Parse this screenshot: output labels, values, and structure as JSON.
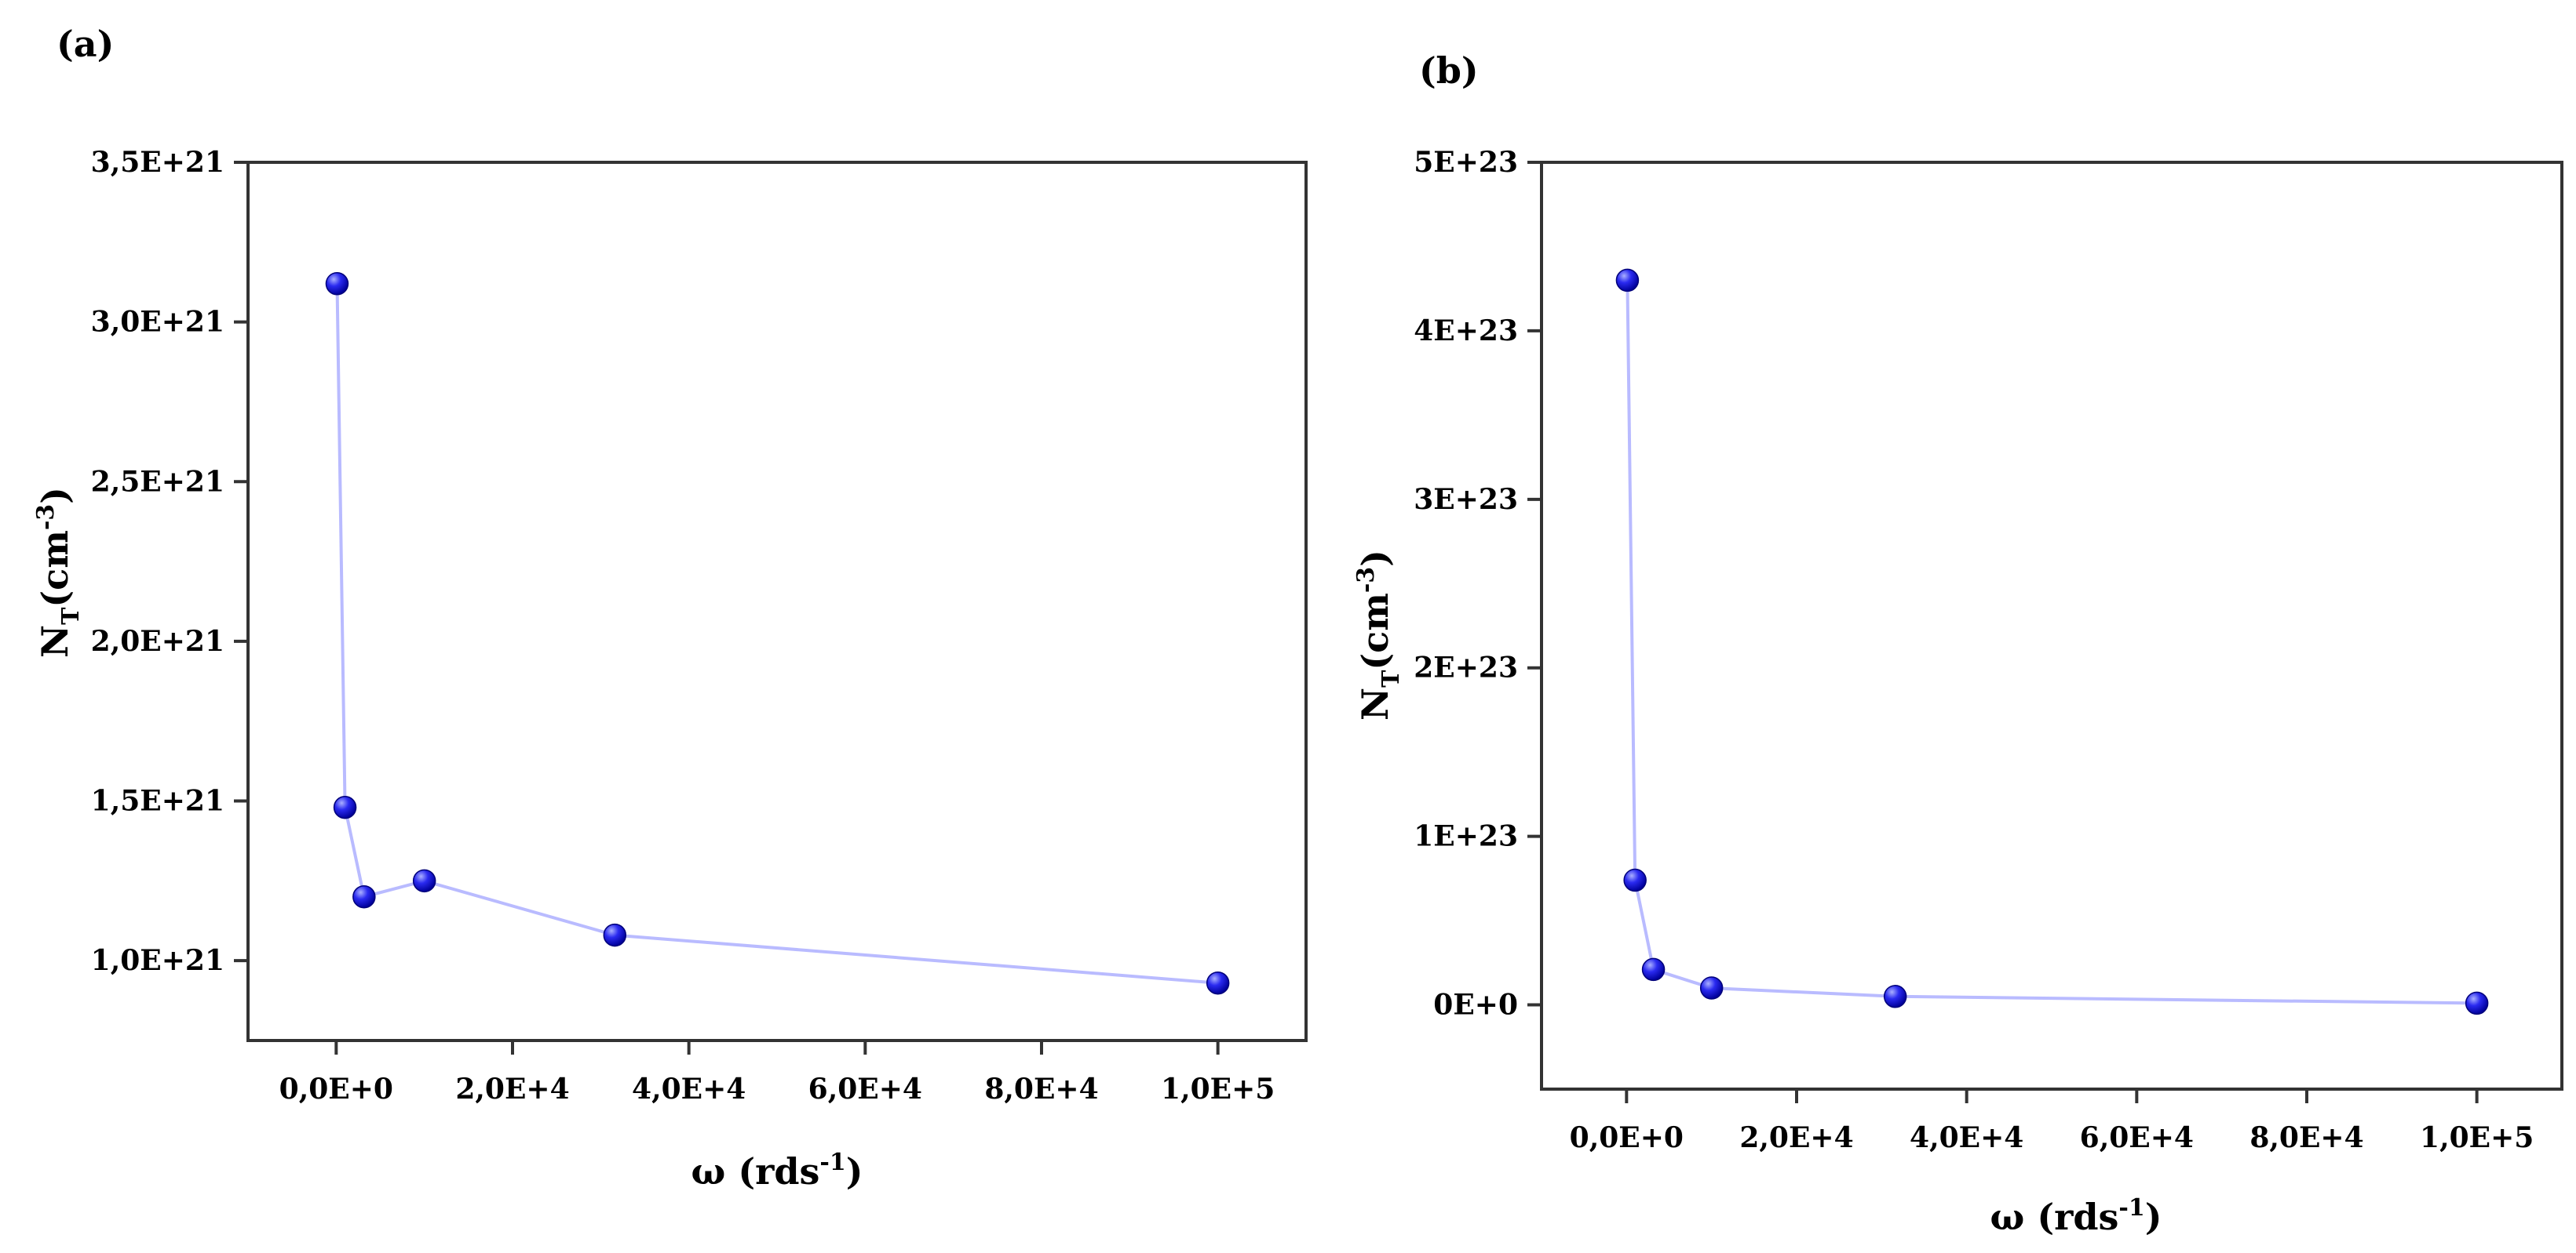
{
  "chart_data": [
    {
      "type": "line",
      "panel_label": "(a)",
      "xlabel": {
        "main": "ω (rds",
        "sup": "-1",
        "end": ")"
      },
      "ylabel": {
        "main": "N",
        "sub": "T",
        "mid": "(cm",
        "sup": "-3",
        "end": ")"
      },
      "xlim": [
        -10000,
        110000
      ],
      "ylim": [
        750000000000000000000,
        3500000000000000000000
      ],
      "x_ticks": [
        {
          "value": 0,
          "label": "0,0E+0"
        },
        {
          "value": 20000,
          "label": "2,0E+4"
        },
        {
          "value": 40000,
          "label": "4,0E+4"
        },
        {
          "value": 60000,
          "label": "6,0E+4"
        },
        {
          "value": 80000,
          "label": "8,0E+4"
        },
        {
          "value": 100000,
          "label": "1,0E+5"
        }
      ],
      "y_ticks": [
        {
          "value": 1000000000000000000000,
          "label": "1,0E+21"
        },
        {
          "value": 1500000000000000000000,
          "label": "1,5E+21"
        },
        {
          "value": 2000000000000000000000,
          "label": "2,0E+21"
        },
        {
          "value": 2500000000000000000000,
          "label": "2,5E+21"
        },
        {
          "value": 3000000000000000000000,
          "label": "3,0E+21"
        },
        {
          "value": 3500000000000000000000,
          "label": "3,5E+21"
        }
      ],
      "series": [
        {
          "x": [
            100,
            1000,
            3160,
            10000,
            31600,
            100000
          ],
          "y": [
            3120000000000000000000,
            1480000000000000000000,
            1200000000000000000000,
            1250000000000000000000,
            1080000000000000000000,
            930000000000000000000
          ]
        }
      ],
      "marker_color": "#1010e0",
      "line_color": "#b9bbff",
      "grid": false
    },
    {
      "type": "line",
      "panel_label": "(b)",
      "xlabel": {
        "main": "ω (rds",
        "sup": "-1",
        "end": ")"
      },
      "ylabel": {
        "main": "N",
        "sub": "T",
        "mid": "(cm",
        "sup": "-3",
        "end": ")"
      },
      "xlim": [
        -10000,
        110000
      ],
      "ylim": [
        -50000000000000000000000,
        500000000000000000000000
      ],
      "x_ticks": [
        {
          "value": 0,
          "label": "0,0E+0"
        },
        {
          "value": 20000,
          "label": "2,0E+4"
        },
        {
          "value": 40000,
          "label": "4,0E+4"
        },
        {
          "value": 60000,
          "label": "6,0E+4"
        },
        {
          "value": 80000,
          "label": "8,0E+4"
        },
        {
          "value": 100000,
          "label": "1,0E+5"
        }
      ],
      "y_ticks": [
        {
          "value": 0,
          "label": "0E+0"
        },
        {
          "value": 100000000000000000000000,
          "label": "1E+23"
        },
        {
          "value": 200000000000000000000000,
          "label": "2E+23"
        },
        {
          "value": 300000000000000000000000,
          "label": "3E+23"
        },
        {
          "value": 400000000000000000000000,
          "label": "4E+23"
        },
        {
          "value": 500000000000000000000000,
          "label": "5E+23"
        }
      ],
      "series": [
        {
          "x": [
            100,
            1000,
            3160,
            10000,
            31600,
            100000
          ],
          "y": [
            430000000000000000000000,
            74000000000000000000000,
            21000000000000000000000,
            10000000000000000000000,
            5000000000000000000000,
            1000000000000000000000
          ]
        }
      ],
      "marker_color": "#1010e0",
      "line_color": "#b9bbff",
      "grid": false
    }
  ]
}
